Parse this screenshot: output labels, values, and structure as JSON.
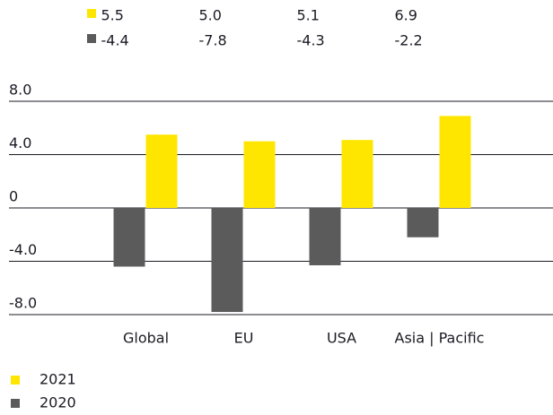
{
  "chart_data": {
    "type": "bar",
    "categories": [
      "Global",
      "EU",
      "USA",
      "Asia | Pacific"
    ],
    "series": [
      {
        "name": "2021",
        "color": "#ffe600",
        "values": [
          5.5,
          5.0,
          5.1,
          6.9
        ],
        "value_labels": [
          "5.5",
          "5.0",
          "5.1",
          "6.9"
        ]
      },
      {
        "name": "2020",
        "color": "#5b5b5b",
        "values": [
          -4.4,
          -7.8,
          -4.3,
          -2.2
        ],
        "value_labels": [
          "-4.4",
          "-7.8",
          "-4.3",
          "-2.2"
        ]
      }
    ],
    "ylim": [
      -8,
      8
    ],
    "yticks": [
      {
        "value": 8,
        "label": "8.0"
      },
      {
        "value": 4,
        "label": "4.0"
      },
      0,
      {
        "value": -4,
        "label": "-4.0"
      },
      {
        "value": -8,
        "label": "-8.0"
      }
    ],
    "grid": true
  }
}
